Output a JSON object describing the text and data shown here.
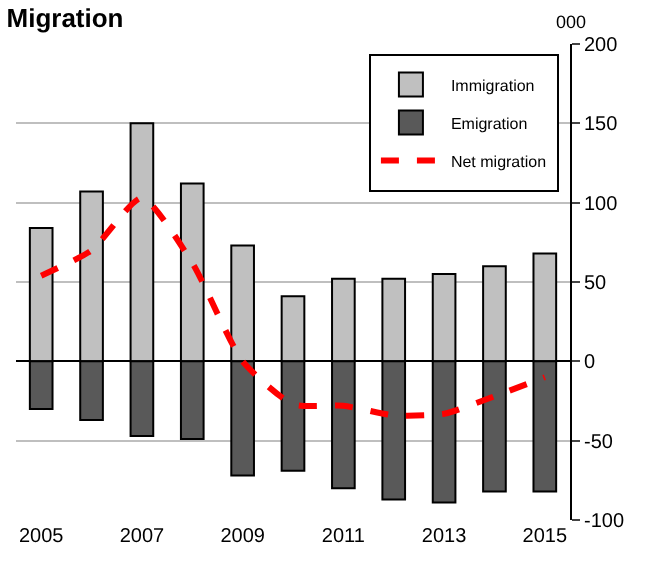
{
  "chart_data": {
    "type": "bar",
    "title": "Migration",
    "ylabel": "000",
    "x": [
      2005,
      2006,
      2007,
      2008,
      2009,
      2010,
      2011,
      2012,
      2013,
      2014,
      2015
    ],
    "series": [
      {
        "name": "Immigration",
        "color": "#c0c0c0",
        "values": [
          84,
          107,
          150,
          112,
          73,
          41,
          52,
          52,
          55,
          60,
          68
        ]
      },
      {
        "name": "Emigration",
        "color": "#595959",
        "values": [
          -30,
          -37,
          -47,
          -49,
          -72,
          -69,
          -80,
          -87,
          -89,
          -82,
          -82
        ]
      },
      {
        "name": "Net migration",
        "type": "line",
        "color": "#ff0000",
        "line_style": "dashed",
        "values": [
          54,
          70,
          103,
          62,
          0,
          -27,
          -28,
          -34,
          -33,
          -22,
          -10
        ]
      }
    ],
    "stacked": true,
    "xlim": [
      2004.5,
      2015.5
    ],
    "xticks": [
      2005,
      2007,
      2009,
      2011,
      2013,
      2015
    ],
    "ylim": [
      -100,
      200
    ],
    "yticks": [
      -100,
      -50,
      0,
      50,
      100,
      150,
      200
    ],
    "grid": "y",
    "legend": "top right",
    "marker": "none"
  }
}
